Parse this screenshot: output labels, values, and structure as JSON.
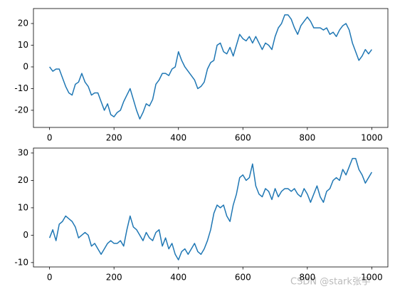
{
  "chart_data": [
    {
      "type": "line",
      "x": [
        0,
        10,
        20,
        30,
        40,
        50,
        60,
        70,
        80,
        90,
        100,
        110,
        120,
        130,
        140,
        150,
        160,
        170,
        180,
        190,
        200,
        210,
        220,
        230,
        240,
        250,
        260,
        270,
        280,
        290,
        300,
        310,
        320,
        330,
        340,
        350,
        360,
        370,
        380,
        390,
        400,
        410,
        420,
        430,
        440,
        450,
        460,
        470,
        480,
        490,
        500,
        510,
        520,
        530,
        540,
        550,
        560,
        570,
        580,
        590,
        600,
        610,
        620,
        630,
        640,
        650,
        660,
        670,
        680,
        690,
        700,
        710,
        720,
        730,
        740,
        750,
        760,
        770,
        780,
        790,
        800,
        810,
        820,
        830,
        840,
        850,
        860,
        870,
        880,
        890,
        900,
        910,
        920,
        930,
        940,
        950,
        960,
        970,
        980,
        990,
        1000
      ],
      "series": [
        {
          "color": "#1f77b4",
          "values": [
            0,
            -2,
            -1,
            -1,
            -5,
            -9,
            -12,
            -13,
            -8,
            -7,
            -3,
            -7,
            -9,
            -13,
            -12,
            -12,
            -16,
            -20,
            -17,
            -22,
            -23,
            -21,
            -20,
            -16,
            -13,
            -10,
            -15,
            -20,
            -24,
            -21,
            -17,
            -18,
            -15,
            -8,
            -6,
            -3,
            -3,
            -4,
            -1,
            0,
            7,
            3,
            0,
            -2,
            -4,
            -6,
            -10,
            -9,
            -7,
            -1,
            2,
            3,
            10,
            11,
            7,
            6,
            9,
            5,
            10,
            15,
            13,
            12,
            14,
            11,
            14,
            11,
            8,
            11,
            10,
            8,
            14,
            18,
            20,
            24,
            24,
            22,
            18,
            15,
            19,
            21,
            23,
            21,
            18,
            18,
            18,
            17,
            18,
            15,
            16,
            14,
            17,
            19,
            20,
            17,
            11,
            7,
            3,
            5,
            8,
            6,
            8
          ]
        }
      ],
      "xlim": [
        -50,
        1050
      ],
      "ylim": [
        -27.9,
        26.9
      ],
      "xticks": [
        0,
        200,
        400,
        600,
        800,
        1000
      ],
      "yticks": [
        -20,
        -10,
        0,
        10,
        20
      ]
    },
    {
      "type": "line",
      "x": [
        0,
        10,
        20,
        30,
        40,
        50,
        60,
        70,
        80,
        90,
        100,
        110,
        120,
        130,
        140,
        150,
        160,
        170,
        180,
        190,
        200,
        210,
        220,
        230,
        240,
        250,
        260,
        270,
        280,
        290,
        300,
        310,
        320,
        330,
        340,
        350,
        360,
        370,
        380,
        390,
        400,
        410,
        420,
        430,
        440,
        450,
        460,
        470,
        480,
        490,
        500,
        510,
        520,
        530,
        540,
        550,
        560,
        570,
        580,
        590,
        600,
        610,
        620,
        630,
        640,
        650,
        660,
        670,
        680,
        690,
        700,
        710,
        720,
        730,
        740,
        750,
        760,
        770,
        780,
        790,
        800,
        810,
        820,
        830,
        840,
        850,
        860,
        870,
        880,
        890,
        900,
        910,
        920,
        930,
        940,
        950,
        960,
        970,
        980,
        990,
        1000
      ],
      "series": [
        {
          "color": "#1f77b4",
          "values": [
            -1,
            2,
            -2,
            4,
            5,
            7,
            6,
            5,
            3,
            -1,
            0,
            1,
            0,
            -4,
            -3,
            -5,
            -7,
            -5,
            -3,
            -2,
            -3,
            -3,
            -2,
            -4,
            2,
            7,
            3,
            2,
            0,
            -2,
            1,
            -1,
            -2,
            1,
            2,
            -4,
            -1,
            -5,
            -3,
            -7,
            -9,
            -6,
            -5,
            -7,
            -5,
            -3,
            -6,
            -7,
            -5,
            -2,
            2,
            8,
            11,
            10,
            11,
            7,
            5,
            11,
            15,
            21,
            22,
            20,
            21,
            26,
            18,
            15,
            14,
            17,
            16,
            13,
            17,
            14,
            16,
            17,
            17,
            16,
            17,
            15,
            14,
            17,
            15,
            12,
            15,
            18,
            14,
            12,
            16,
            17,
            20,
            21,
            20,
            24,
            22,
            25,
            28,
            28,
            24,
            22,
            19,
            21,
            23
          ]
        }
      ],
      "xlim": [
        -50,
        1050
      ],
      "ylim": [
        -11.6,
        31.8
      ],
      "xticks": [
        0,
        200,
        400,
        600,
        800,
        1000
      ],
      "yticks": [
        -10,
        0,
        10,
        20,
        30
      ]
    }
  ],
  "watermark": "CSDN @stark张宇"
}
